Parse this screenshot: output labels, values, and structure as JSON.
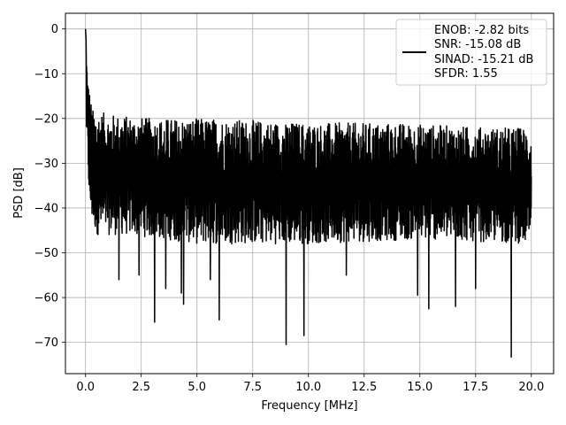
{
  "chart_data": {
    "type": "line",
    "title": "",
    "xlabel": "Frequency [MHz]",
    "ylabel": "PSD [dB]",
    "xlim": [
      -0.9,
      21.0
    ],
    "ylim": [
      -77,
      3.5
    ],
    "xticks": [
      0.0,
      2.5,
      5.0,
      7.5,
      10.0,
      12.5,
      15.0,
      17.5,
      20.0
    ],
    "xtick_labels": [
      "0.0",
      "2.5",
      "5.0",
      "7.5",
      "10.0",
      "12.5",
      "15.0",
      "17.5",
      "20.0"
    ],
    "yticks": [
      0,
      -10,
      -20,
      -30,
      -40,
      -50,
      -60,
      -70
    ],
    "ytick_labels": [
      "0",
      "−10",
      "−20",
      "−30",
      "−40",
      "−50",
      "−60",
      "−70"
    ],
    "grid": true,
    "legend": {
      "position": "top-right",
      "entries": [
        "ENOB: -2.82 bits",
        "SNR: -15.08 dB",
        "SINAD: -15.21 dB",
        "SFDR: 1.55"
      ]
    },
    "series": [
      {
        "color": "#000000",
        "x_range": [
          0.0,
          20.0
        ],
        "noise_envelope_upper": [
          [
            0.0,
            0
          ],
          [
            0.1,
            -10
          ],
          [
            0.3,
            -18
          ],
          [
            1.0,
            -19
          ],
          [
            3.0,
            -20
          ],
          [
            6.0,
            -20
          ],
          [
            10.0,
            -21
          ],
          [
            14.0,
            -21
          ],
          [
            18.0,
            -22
          ],
          [
            20.0,
            -22
          ]
        ],
        "noise_envelope_lower": [
          [
            0.0,
            -20
          ],
          [
            0.2,
            -42
          ],
          [
            0.5,
            -46
          ],
          [
            2.0,
            -46
          ],
          [
            5.0,
            -48
          ],
          [
            10.0,
            -48
          ],
          [
            15.0,
            -47
          ],
          [
            20.0,
            -48
          ]
        ],
        "deep_dips": [
          [
            1.5,
            -56
          ],
          [
            2.4,
            -55
          ],
          [
            3.1,
            -65.5
          ],
          [
            3.6,
            -58
          ],
          [
            4.3,
            -59
          ],
          [
            4.4,
            -61.5
          ],
          [
            5.6,
            -56
          ],
          [
            6.0,
            -65
          ],
          [
            9.0,
            -70.5
          ],
          [
            9.8,
            -68.5
          ],
          [
            11.7,
            -55
          ],
          [
            14.9,
            -59.5
          ],
          [
            15.4,
            -62.5
          ],
          [
            16.6,
            -62
          ],
          [
            17.5,
            -58
          ],
          [
            19.1,
            -73.3
          ]
        ]
      }
    ]
  }
}
